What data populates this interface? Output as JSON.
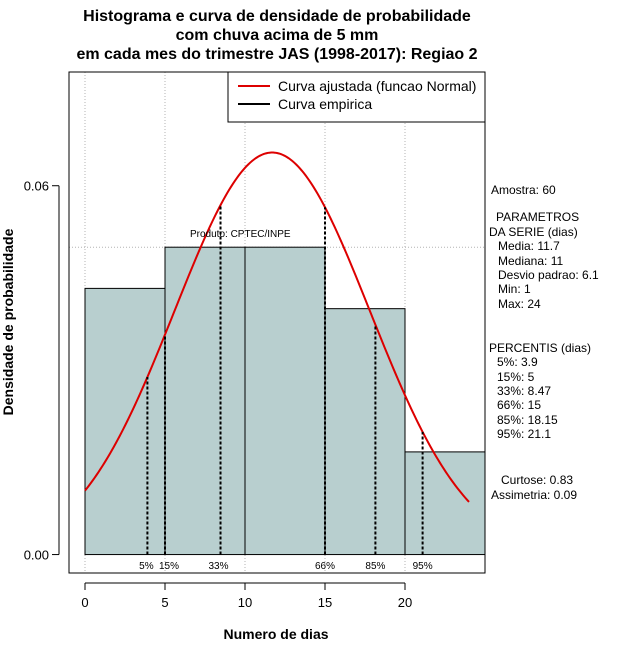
{
  "chart_data": {
    "type": "bar",
    "title_lines": [
      "Histograma e curva de densidade de probabilidade",
      "com chuva acima de 5 mm",
      "em cada mes do trimestre JAS (1998-2017): Regiao 2"
    ],
    "xlabel": "Numero de dias",
    "ylabel": "Densidade de probabilidade",
    "xlim": [
      -1,
      25
    ],
    "ylim": [
      -0.003,
      0.0785
    ],
    "x_ticks": [
      0,
      5,
      10,
      15,
      20
    ],
    "x_tick_labels": [
      "0",
      "5",
      "10",
      "15",
      "20"
    ],
    "y_ticks": [
      0.0,
      0.06
    ],
    "y_tick_labels": [
      "0.00",
      "0.06"
    ],
    "bins": [
      {
        "start": 0,
        "end": 5,
        "density": 0.0433
      },
      {
        "start": 5,
        "end": 10,
        "density": 0.05
      },
      {
        "start": 10,
        "end": 15,
        "density": 0.05
      },
      {
        "start": 15,
        "end": 20,
        "density": 0.04
      },
      {
        "start": 20,
        "end": 25,
        "density": 0.0167
      }
    ],
    "grid_x": [
      0,
      5,
      10,
      15,
      20
    ],
    "grid_y": [
      0.05,
      0.1
    ],
    "normal_fit": {
      "mean": 11.7,
      "sd": 6.1,
      "x_from": 0,
      "x_to": 24
    },
    "percentiles": [
      {
        "label": "5%",
        "value": 3.9
      },
      {
        "label": "15%",
        "value": 5
      },
      {
        "label": "33%",
        "value": 8.47
      },
      {
        "label": "66%",
        "value": 15
      },
      {
        "label": "85%",
        "value": 18.15
      },
      {
        "label": "95%",
        "value": 21.1
      }
    ],
    "legend": [
      {
        "label": "Curva ajustada (funcao Normal)",
        "color": "#dd0000"
      },
      {
        "label": "Curva empirica",
        "color": "#000000"
      }
    ],
    "legend_position": "top-right",
    "product_label": "Produto: CPTEC/INPE",
    "bar_color": "#b8cfcf",
    "curve_color": "#dd0000"
  },
  "stats_panel": {
    "amostra": "Amostra: 60",
    "param_title_1": "PARAMETROS",
    "param_title_2": "DA SERIE (dias)",
    "media": "Media: 11.7",
    "mediana": "Mediana: 11",
    "desvio": "Desvio padrao: 6.1",
    "min": "Min: 1",
    "max": "Max: 24",
    "perc_title": "PERCENTIS (dias)",
    "p5": "5%: 3.9",
    "p15": "15%: 5",
    "p33": "33%: 8.47",
    "p66": "66%: 15",
    "p85": "85%: 18.15",
    "p95": "95%: 21.1",
    "curtose": "Curtose: 0.83",
    "assimetria": "Assimetria: 0.09"
  }
}
